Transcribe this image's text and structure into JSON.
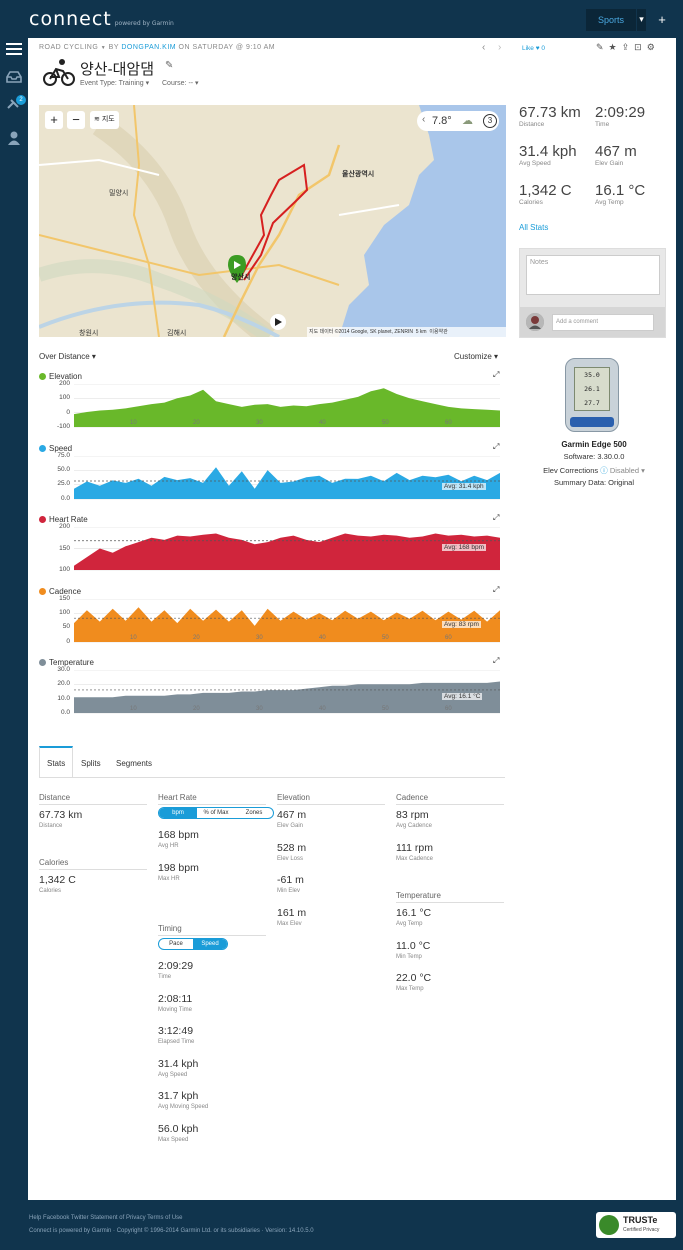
{
  "topbar": {
    "logo": "connect",
    "powered": "powered by Garmin",
    "sports": "Sports",
    "caret": "▾",
    "plus": "+",
    "notif_count": "2"
  },
  "activity": {
    "type_label": "ROAD CYCLING",
    "type_caret": "▼",
    "by": "BY",
    "owner": "DONGPAN.KIM",
    "when": "ON SATURDAY @ 9:10 AM",
    "like": "Like",
    "like_count": "0",
    "title": "양산-대암댐",
    "event_type": "Event Type: Training ▾",
    "course": "Course: -- ▾"
  },
  "map": {
    "layers": "지도",
    "temp": "7.8°",
    "badge": "3",
    "attribution": "지도 데이터 ©2014 Google, SK planet, ZENRIN",
    "scale": "5 km",
    "terms": "이용약관",
    "labels": {
      "a": "울산광역시",
      "b": "밀양시",
      "c": "양산시",
      "d": "창원시",
      "e": "김해시"
    }
  },
  "summary": [
    {
      "value": "67.73 km",
      "label": "Distance"
    },
    {
      "value": "2:09:29",
      "label": "Time"
    },
    {
      "value": "31.4 kph",
      "label": "Avg Speed"
    },
    {
      "value": "467 m",
      "label": "Elev Gain"
    },
    {
      "value": "1,342 C",
      "label": "Calories"
    },
    {
      "value": "16.1 °C",
      "label": "Avg Temp"
    }
  ],
  "all_stats": "All Stats",
  "notes": {
    "placeholder": "Notes",
    "comment_placeholder": "Add a comment"
  },
  "device": {
    "name": "Garmin Edge 500",
    "software": "Software: 3.30.0.0",
    "elev": "Elev Corrections",
    "elev_val": "Disabled ▾",
    "summary": "Summary Data: Original",
    "screen1": "35.0",
    "screen2": "26.1",
    "screen3": "27.7"
  },
  "charts_header": {
    "over": "Over Distance ▾",
    "customize": "Customize ▾"
  },
  "charts": [
    {
      "name": "Elevation",
      "color": "#69b82a",
      "yticks": [
        "200",
        "100",
        "0",
        "-100"
      ],
      "ymin": -100,
      "ymax": 200,
      "avg": null,
      "avg_label": "",
      "values": [
        -10,
        5,
        15,
        20,
        30,
        45,
        60,
        70,
        100,
        120,
        160,
        80,
        60,
        40,
        55,
        60,
        40,
        50,
        45,
        60,
        70,
        90,
        110,
        150,
        170,
        130,
        100,
        80,
        60,
        40,
        30,
        25,
        20,
        15
      ]
    },
    {
      "name": "Speed",
      "color": "#2aa9e4",
      "yticks": [
        "75.0",
        "50.0",
        "25.0",
        "0.0"
      ],
      "ymin": 0,
      "ymax": 75,
      "avg": 31.4,
      "avg_label": "Avg: 31.4 kph",
      "values": [
        25,
        20,
        30,
        22,
        35,
        25,
        30,
        28,
        40,
        26,
        35,
        45,
        30,
        38,
        25,
        40,
        35,
        20,
        45,
        30,
        35,
        25,
        42,
        30,
        38,
        35,
        40,
        30,
        45,
        32,
        38,
        30,
        40,
        35
      ]
    },
    {
      "name": "Heart Rate",
      "color": "#d0253c",
      "yticks": [
        "200",
        "150",
        "100"
      ],
      "ymin": 100,
      "ymax": 200,
      "avg": 168,
      "avg_label": "Avg: 168 bpm",
      "values": [
        110,
        130,
        150,
        140,
        155,
        165,
        175,
        170,
        180,
        178,
        182,
        185,
        175,
        170,
        160,
        165,
        175,
        180,
        170,
        165,
        175,
        185,
        180,
        178,
        182,
        180,
        175,
        178,
        185,
        180,
        182,
        178,
        180,
        175
      ]
    },
    {
      "name": "Cadence",
      "color": "#f08c1e",
      "yticks": [
        "150",
        "100",
        "50",
        "0"
      ],
      "ymin": 0,
      "ymax": 150,
      "avg": 83,
      "avg_label": "Avg: 83 rpm",
      "values": [
        80,
        90,
        85,
        95,
        88,
        100,
        85,
        90,
        80,
        95,
        88,
        92,
        85,
        90,
        70,
        95,
        88,
        85,
        92,
        80,
        90,
        88,
        95,
        85,
        90,
        82,
        95,
        88,
        90,
        85,
        92,
        88,
        85,
        90
      ]
    },
    {
      "name": "Temperature",
      "color": "#7f8e99",
      "yticks": [
        "30.0",
        "20.0",
        "10.0",
        "0.0"
      ],
      "ymin": 0,
      "ymax": 30,
      "avg": 16.1,
      "avg_label": "Avg: 16.1 °C",
      "values": [
        11,
        11,
        11,
        11,
        12,
        12,
        12,
        12,
        13,
        13,
        14,
        14,
        14,
        15,
        15,
        16,
        16,
        16,
        17,
        18,
        19,
        19,
        20,
        20,
        20,
        20,
        20,
        21,
        21,
        21,
        21,
        21,
        21,
        22
      ]
    }
  ],
  "xticks": [
    "10",
    "20",
    "30",
    "40",
    "50",
    "60"
  ],
  "tabs": [
    "Stats",
    "Splits",
    "Segments"
  ],
  "stats": {
    "distance": {
      "head": "Distance",
      "items": [
        {
          "v": "67.73 km",
          "l": "Distance"
        }
      ]
    },
    "calories": {
      "head": "Calories",
      "items": [
        {
          "v": "1,342 C",
          "l": "Calories"
        }
      ]
    },
    "heartrate": {
      "head": "Heart Rate",
      "seg": [
        "bpm",
        "% of Max",
        "Zones"
      ],
      "items": [
        {
          "v": "168 bpm",
          "l": "Avg HR"
        },
        {
          "v": "198 bpm",
          "l": "Max HR"
        }
      ]
    },
    "timing": {
      "head": "Timing",
      "seg": [
        "Pace",
        "Speed"
      ],
      "items": [
        {
          "v": "2:09:29",
          "l": "Time"
        },
        {
          "v": "2:08:11",
          "l": "Moving Time"
        },
        {
          "v": "3:12:49",
          "l": "Elapsed Time"
        },
        {
          "v": "31.4 kph",
          "l": "Avg Speed"
        },
        {
          "v": "31.7 kph",
          "l": "Avg Moving Speed"
        },
        {
          "v": "56.0 kph",
          "l": "Max Speed"
        }
      ]
    },
    "elevation": {
      "head": "Elevation",
      "items": [
        {
          "v": "467 m",
          "l": "Elev Gain"
        },
        {
          "v": "528 m",
          "l": "Elev Loss"
        },
        {
          "v": "-61 m",
          "l": "Min Elev"
        },
        {
          "v": "161 m",
          "l": "Max Elev"
        }
      ]
    },
    "cadence": {
      "head": "Cadence",
      "items": [
        {
          "v": "83 rpm",
          "l": "Avg Cadence"
        },
        {
          "v": "111 rpm",
          "l": "Max Cadence"
        }
      ]
    },
    "temperature": {
      "head": "Temperature",
      "items": [
        {
          "v": "16.1 °C",
          "l": "Avg Temp"
        },
        {
          "v": "11.0 °C",
          "l": "Min Temp"
        },
        {
          "v": "22.0 °C",
          "l": "Max Temp"
        }
      ]
    }
  },
  "footer": {
    "links": "Help  Facebook  Twitter  Statement of Privacy  Terms of Use",
    "copy": "Connect is powered by Garmin · Copyright © 1996-2014 Garmin Ltd. or its subsidiaries · Version: 14.10.5.0",
    "truste": "TRUSTe",
    "truste_sub": "Certified Privacy"
  }
}
